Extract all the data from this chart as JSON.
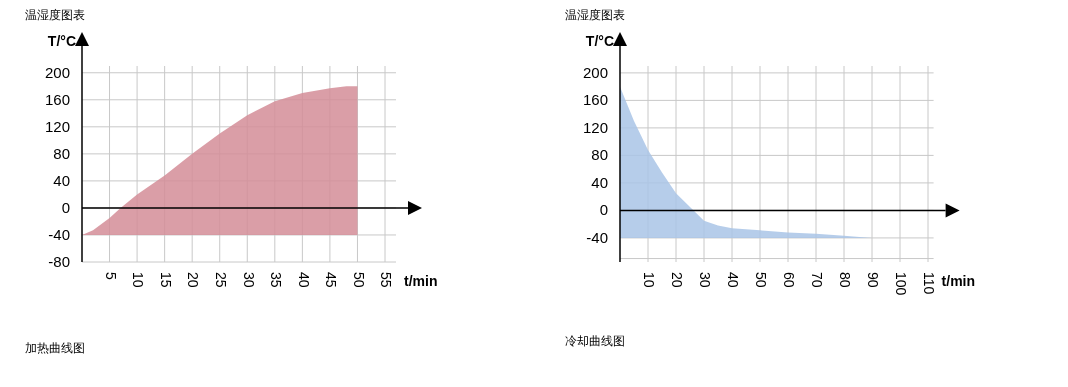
{
  "chart_data": [
    {
      "type": "area",
      "title": "温湿度图表",
      "ylabel": "T/°C",
      "xlabel": "t/min",
      "annotations": [
        "加热曲线图"
      ],
      "grid": true,
      "xlim": [
        0,
        57
      ],
      "ylim": [
        -80,
        210
      ],
      "xticks": [
        5,
        10,
        15,
        20,
        25,
        30,
        35,
        40,
        45,
        50,
        55
      ],
      "yticks": [
        -80,
        -40,
        0,
        40,
        80,
        120,
        160,
        200
      ],
      "x": [
        0,
        2,
        5,
        7,
        10,
        15,
        20,
        25,
        30,
        35,
        40,
        45,
        48,
        50,
        50
      ],
      "series": [
        {
          "color": "#d48d98",
          "values": [
            -40,
            -33,
            -15,
            0,
            20,
            48,
            80,
            110,
            137,
            158,
            170,
            177,
            180,
            180,
            -40
          ]
        }
      ]
    },
    {
      "type": "area",
      "title": "温湿度图表",
      "ylabel": "T/°C",
      "xlabel": "t/min",
      "annotations": [
        "冷却曲线图"
      ],
      "grid": true,
      "xlim": [
        0,
        112
      ],
      "ylim": [
        -75,
        210
      ],
      "xticks": [
        10,
        20,
        30,
        40,
        50,
        60,
        70,
        80,
        90,
        100,
        110
      ],
      "yticks": [
        {
          "value": -70,
          "label": null
        },
        -40,
        0,
        40,
        80,
        120,
        160,
        200
      ],
      "x": [
        0,
        0,
        5,
        10,
        15,
        20,
        25,
        30,
        35,
        40,
        50,
        60,
        70,
        80,
        90
      ],
      "series": [
        {
          "color": "#a9c4e6",
          "values": [
            -40,
            180,
            130,
            88,
            55,
            25,
            5,
            -15,
            -22,
            -26,
            -29,
            -32,
            -34,
            -37,
            -40
          ]
        }
      ]
    }
  ]
}
